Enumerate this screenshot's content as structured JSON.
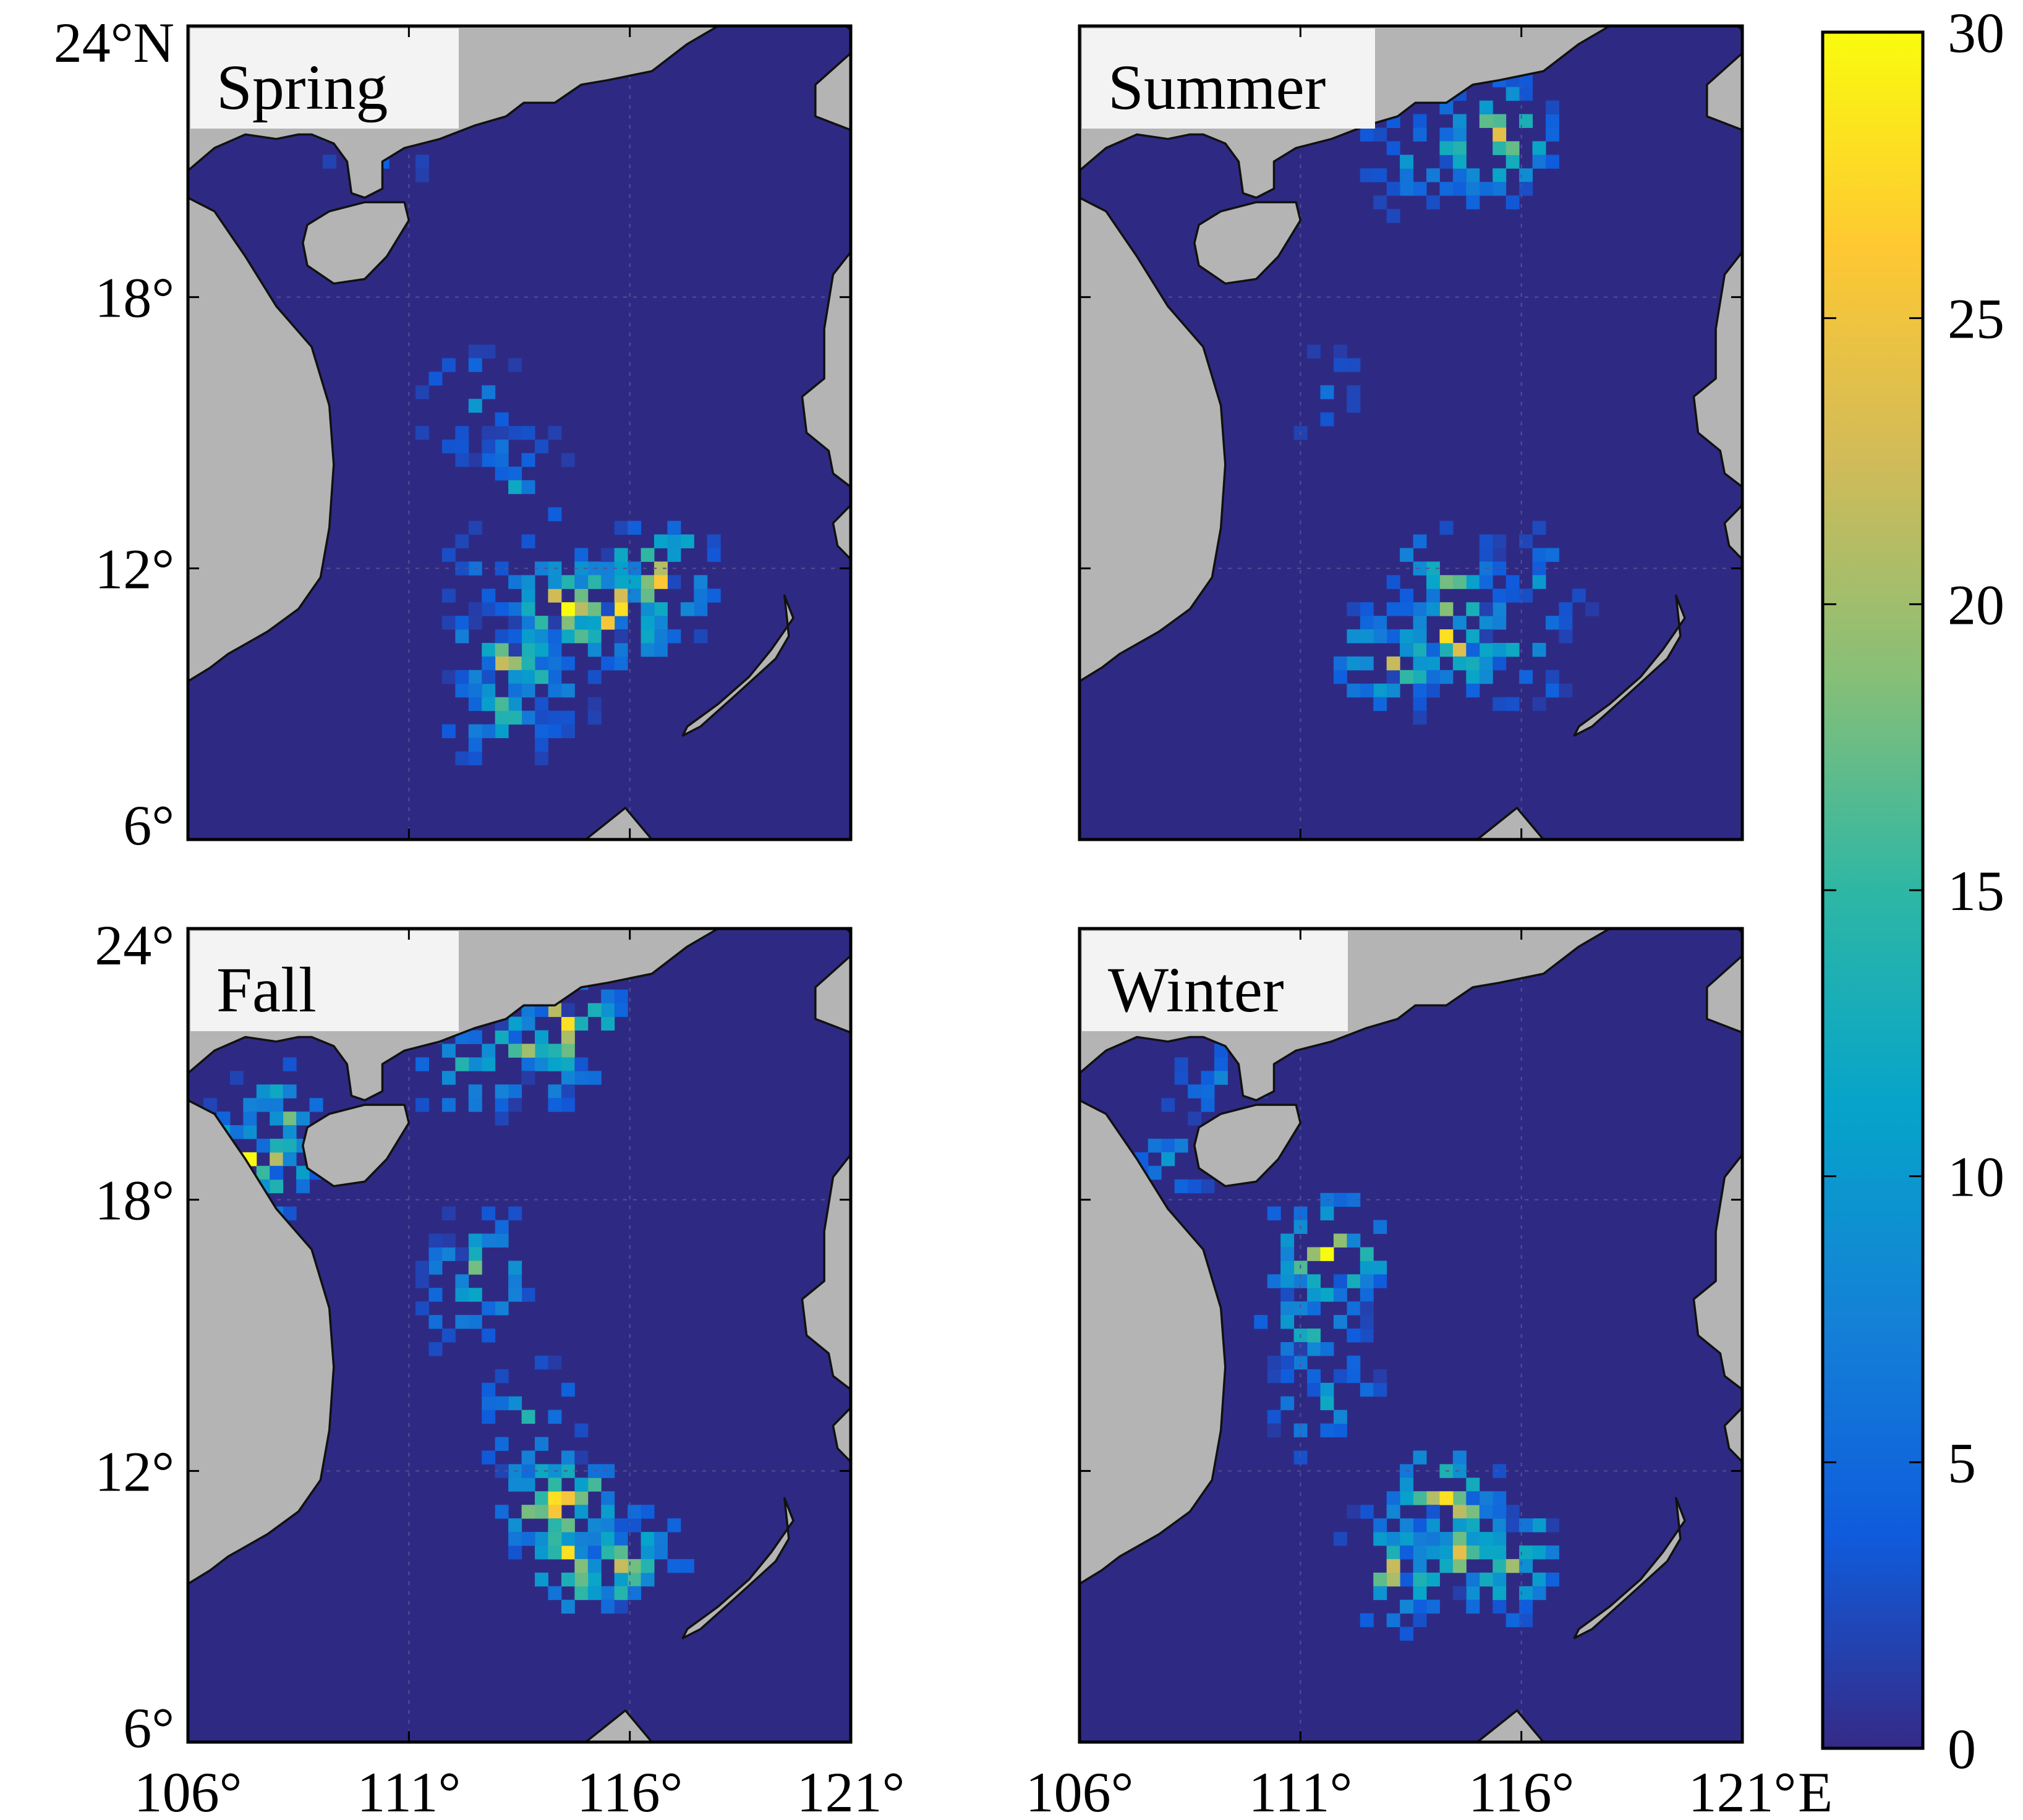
{
  "colors": {
    "ocean": "#2e2a84",
    "land": "#b4b4b4",
    "coastline": "#111111",
    "title_box": "#f3f3f3",
    "grid": "#53528f",
    "colormap": [
      "#352a87",
      "#0f5cdd",
      "#1481d6",
      "#06a4ca",
      "#2eb7a4",
      "#87bf77",
      "#d1bb59",
      "#fec832",
      "#f9fb0e"
    ]
  },
  "map_extent": {
    "lon": [
      106,
      121
    ],
    "lat": [
      6,
      24
    ]
  },
  "x_ticks": [
    {
      "value": 106,
      "label": "106°"
    },
    {
      "value": 111,
      "label": "111°"
    },
    {
      "value": 116,
      "label": "116°"
    },
    {
      "value": 121,
      "label": "121°"
    }
  ],
  "x_unit": "E",
  "y_ticks": [
    {
      "value": 24,
      "label": "24°N",
      "top_label": "24°N",
      "bottom_label": "24°"
    },
    {
      "value": 18,
      "label": "18°"
    },
    {
      "value": 12,
      "label": "12°"
    },
    {
      "value": 6,
      "label": "6°"
    }
  ],
  "colorbar": {
    "min": 0,
    "max": 30,
    "ticks": [
      {
        "value": 30,
        "label": "30"
      },
      {
        "value": 25,
        "label": "25"
      },
      {
        "value": 20,
        "label": "20"
      },
      {
        "value": 15,
        "label": "15"
      },
      {
        "value": 10,
        "label": "10"
      },
      {
        "value": 5,
        "label": "5"
      },
      {
        "value": 0,
        "label": "0"
      }
    ]
  },
  "panels": [
    {
      "title": "Spring",
      "hotspots": [
        {
          "lon": 114.6,
          "lat": 11.1,
          "value": 30
        },
        {
          "lon": 115.8,
          "lat": 11.0,
          "value": 28
        },
        {
          "lon": 116.7,
          "lat": 11.8,
          "value": 26
        },
        {
          "lon": 113.2,
          "lat": 9.9,
          "value": 22
        },
        {
          "lon": 113.1,
          "lat": 8.9,
          "value": 16
        },
        {
          "lon": 114.1,
          "lat": 9.5,
          "value": 14
        },
        {
          "lon": 113.5,
          "lat": 13.8,
          "value": 12
        },
        {
          "lon": 112.4,
          "lat": 15.6,
          "value": 10
        },
        {
          "lon": 110.3,
          "lat": 21.5,
          "value": 8
        },
        {
          "lon": 112.5,
          "lat": 12.0,
          "value": 6
        }
      ]
    },
    {
      "title": "Summer",
      "hotspots": [
        {
          "lon": 115.5,
          "lat": 21.5,
          "value": 24
        },
        {
          "lon": 114.5,
          "lat": 21.2,
          "value": 14
        },
        {
          "lon": 113.5,
          "lat": 21.0,
          "value": 10
        },
        {
          "lon": 114.4,
          "lat": 10.4,
          "value": 28
        },
        {
          "lon": 114.3,
          "lat": 11.6,
          "value": 18
        },
        {
          "lon": 116.4,
          "lat": 11.6,
          "value": 10
        },
        {
          "lon": 115.8,
          "lat": 10.2,
          "value": 12
        },
        {
          "lon": 113.1,
          "lat": 10.0,
          "value": 22
        },
        {
          "lon": 111.6,
          "lat": 16.0,
          "value": 6
        }
      ]
    },
    {
      "title": "Fall",
      "hotspots": [
        {
          "lon": 107.5,
          "lat": 18.9,
          "value": 30
        },
        {
          "lon": 108.2,
          "lat": 19.8,
          "value": 18
        },
        {
          "lon": 114.7,
          "lat": 21.9,
          "value": 28
        },
        {
          "lon": 113.6,
          "lat": 21.2,
          "value": 20
        },
        {
          "lon": 112.3,
          "lat": 20.9,
          "value": 14
        },
        {
          "lon": 112.6,
          "lat": 16.5,
          "value": 18
        },
        {
          "lon": 112.1,
          "lat": 15.8,
          "value": 10
        },
        {
          "lon": 114.4,
          "lat": 11.3,
          "value": 28
        },
        {
          "lon": 114.7,
          "lat": 10.1,
          "value": 28
        },
        {
          "lon": 113.8,
          "lat": 13.1,
          "value": 14
        },
        {
          "lon": 115.9,
          "lat": 10.0,
          "value": 22
        }
      ]
    },
    {
      "title": "Winter",
      "hotspots": [
        {
          "lon": 111.6,
          "lat": 16.8,
          "value": 30
        },
        {
          "lon": 111.3,
          "lat": 15.0,
          "value": 14
        },
        {
          "lon": 111.5,
          "lat": 13.6,
          "value": 12
        },
        {
          "lon": 114.3,
          "lat": 11.3,
          "value": 28
        },
        {
          "lon": 114.7,
          "lat": 10.1,
          "value": 24
        },
        {
          "lon": 115.8,
          "lat": 10.0,
          "value": 20
        },
        {
          "lon": 113.1,
          "lat": 9.8,
          "value": 22
        },
        {
          "lon": 107.9,
          "lat": 19.0,
          "value": 10
        },
        {
          "lon": 109.3,
          "lat": 20.6,
          "value": 8
        }
      ]
    }
  ]
}
